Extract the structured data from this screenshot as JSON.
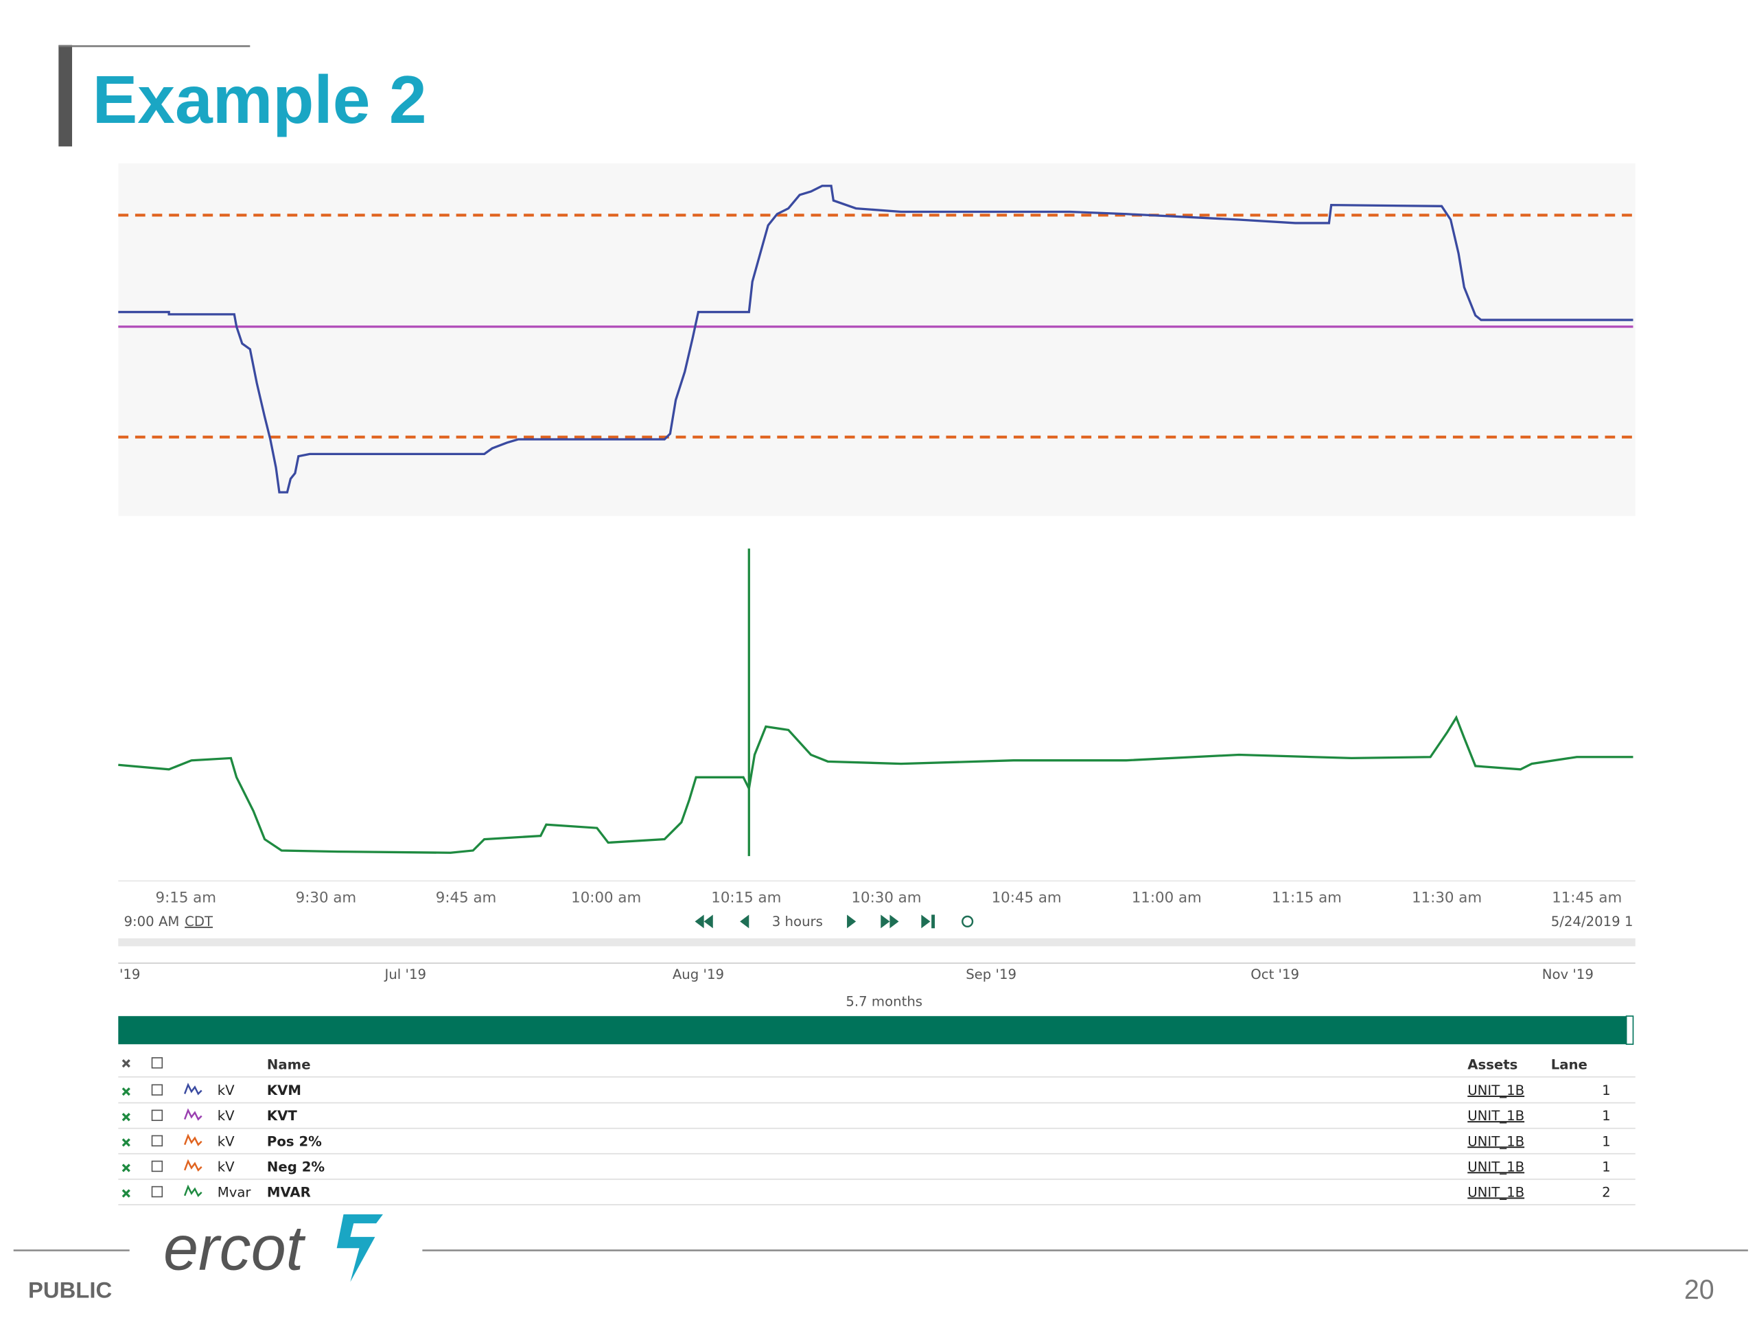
{
  "header": {
    "title": "Example 2"
  },
  "chart": {
    "x_ticks": [
      "9:15 am",
      "9:30 am",
      "9:45 am",
      "10:00 am",
      "10:15 am",
      "10:30 am",
      "10:45 am",
      "11:00 am",
      "11:15 am",
      "11:30 am",
      "11:45 am"
    ],
    "range_start": {
      "time": "9:00 AM",
      "zone": "CDT"
    },
    "span": "3 hours",
    "range_end": "5/24/2019 1"
  },
  "navigator": {
    "labels": [
      "'19",
      "Jul '19",
      "Aug '19",
      "Sep '19",
      "Oct '19",
      "Nov '19"
    ],
    "span": "5.7 months"
  },
  "table": {
    "columns": {
      "name": "Name",
      "assets": "Assets",
      "lane": "Lane"
    },
    "rows": [
      {
        "unit": "kV",
        "name": "KVM",
        "asset": "UNIT_1B",
        "lane": "1"
      },
      {
        "unit": "kV",
        "name": "KVT",
        "asset": "UNIT_1B",
        "lane": "1"
      },
      {
        "unit": "kV",
        "name": "Pos 2%",
        "asset": "UNIT_1B",
        "lane": "1"
      },
      {
        "unit": "kV",
        "name": "Neg 2%",
        "asset": "UNIT_1B",
        "lane": "1"
      },
      {
        "unit": "Mvar",
        "name": "MVAR",
        "asset": "UNIT_1B",
        "lane": "2"
      }
    ]
  },
  "footer": {
    "classification": "PUBLIC",
    "page_number": "20",
    "logo": "ercot"
  }
}
